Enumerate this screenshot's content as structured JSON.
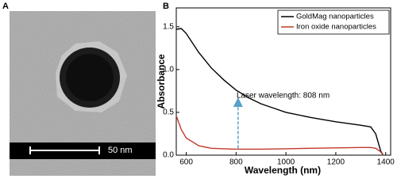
{
  "panel_a": {
    "label": "A",
    "scale_bar": "50 nm"
  },
  "chart_data": {
    "type": "line",
    "label": "B",
    "xlabel": "Wavelength (nm)",
    "ylabel": "Absorbance",
    "x": [
      560,
      580,
      600,
      650,
      700,
      750,
      800,
      850,
      900,
      950,
      1000,
      1100,
      1200,
      1300,
      1340,
      1360,
      1380,
      1390
    ],
    "series": [
      {
        "name": "GoldMag nanoparticles",
        "color": "#000000",
        "values": [
          1.47,
          1.48,
          1.42,
          1.2,
          1.02,
          0.88,
          0.76,
          0.67,
          0.6,
          0.55,
          0.5,
          0.44,
          0.39,
          0.35,
          0.33,
          0.25,
          0.05,
          0
        ]
      },
      {
        "name": "Iron oxide nanoparticles",
        "color": "#c0392b",
        "values": [
          0.46,
          0.3,
          0.2,
          0.11,
          0.08,
          0.075,
          0.07,
          0.07,
          0.07,
          0.072,
          0.075,
          0.08,
          0.085,
          0.09,
          0.09,
          0.08,
          0.04,
          0
        ]
      }
    ],
    "annotation": {
      "text": "Laser wavelength: 808 nm",
      "x": 808,
      "y_from": 0.08,
      "y_to": 0.62
    },
    "xlim": [
      560,
      1420
    ],
    "ylim": [
      0,
      1.72
    ],
    "xticks": [
      600,
      800,
      1000,
      1200,
      1400
    ],
    "yticks": [
      {
        "value": 0,
        "label": "0.0"
      },
      0.5,
      {
        "value": 1,
        "label": "1.0"
      },
      1.5
    ],
    "legend": "upper right"
  }
}
